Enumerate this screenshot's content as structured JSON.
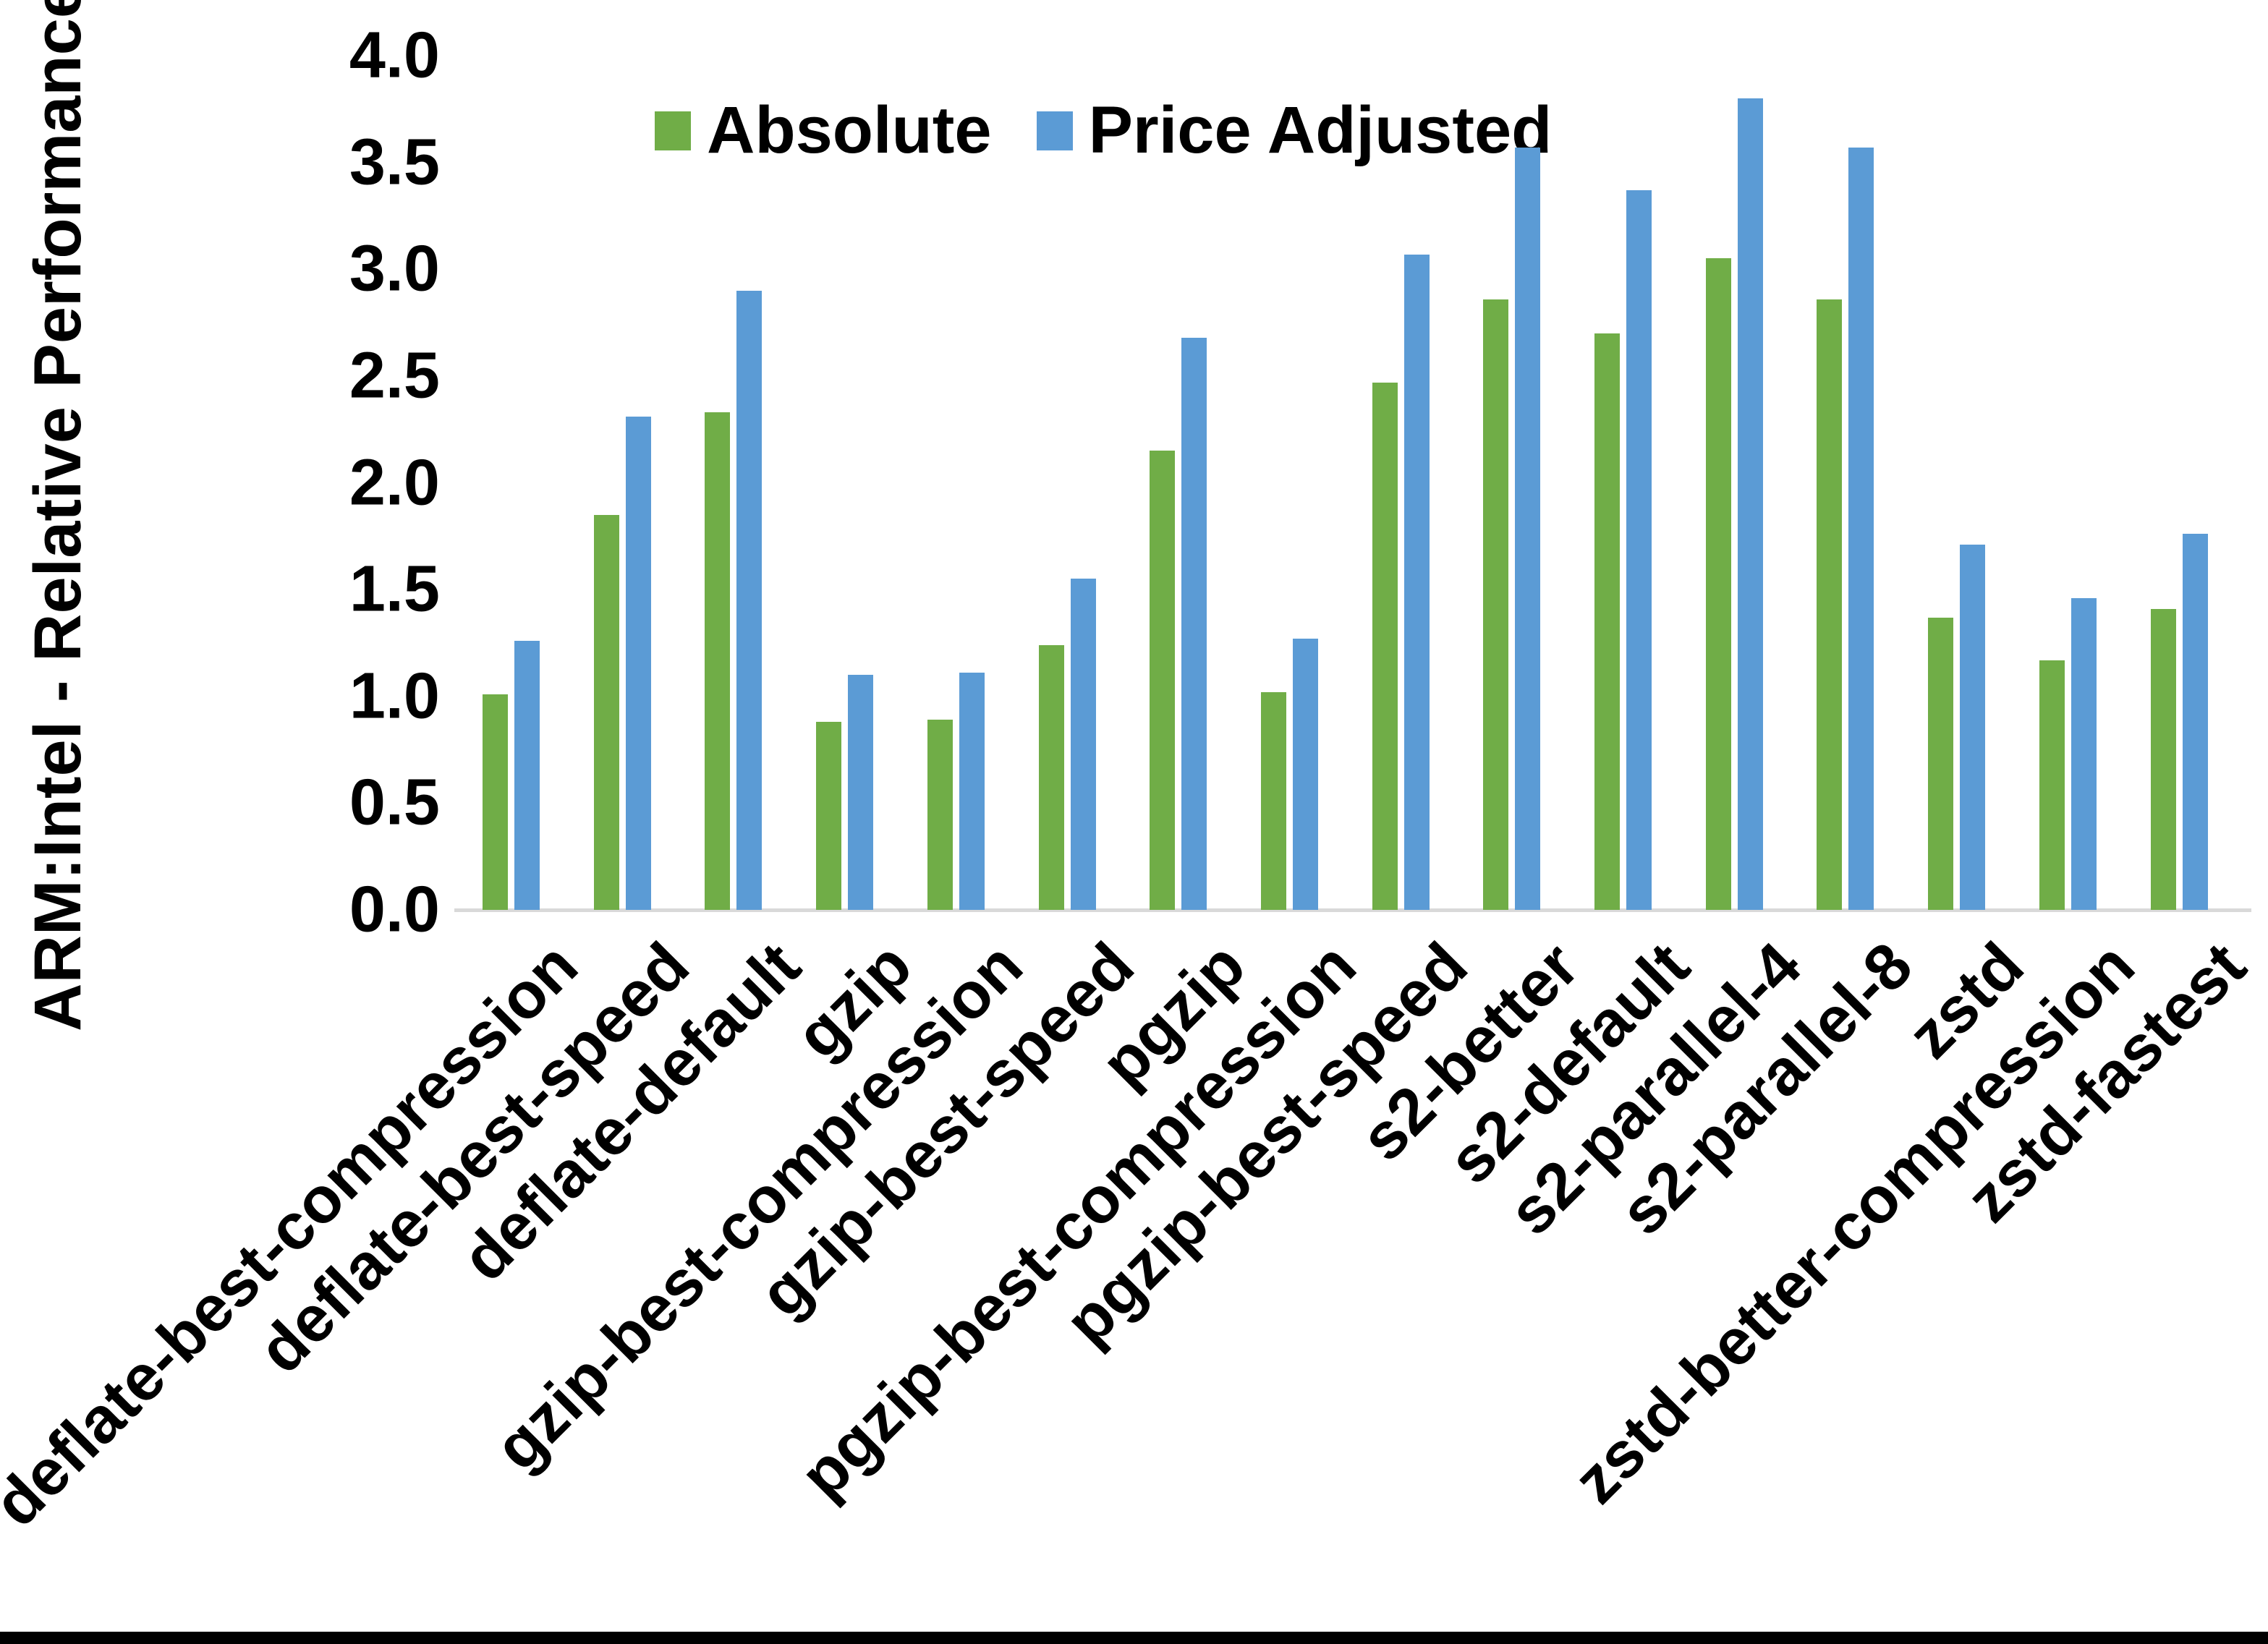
{
  "chart_data": {
    "type": "bar",
    "title": "",
    "ylabel": "ARM:Intel - Relative Performance",
    "xlabel": "",
    "ylim": [
      0.0,
      4.0
    ],
    "ytick_step": 0.5,
    "ytick_labels": [
      "0.0",
      "0.5",
      "1.0",
      "1.5",
      "2.0",
      "2.5",
      "3.0",
      "3.5",
      "4.0"
    ],
    "grid": false,
    "legend_position": "top-center",
    "categories": [
      "deflate-best-compression",
      "deflate-best-speed",
      "deflate-default",
      "gzip",
      "gzip-best-compression",
      "gzip-best-speed",
      "pgzip",
      "pgzip-best-compression",
      "pgzip-best-speed",
      "s2-better",
      "s2-default",
      "s2-parallel-4",
      "s2-parallel-8",
      "zstd",
      "zstd-better-compression",
      "zstd-fastest"
    ],
    "series": [
      {
        "name": "Absolute",
        "color": "#70AD47",
        "values": [
          1.01,
          1.85,
          2.33,
          0.88,
          0.89,
          1.24,
          2.15,
          1.02,
          2.47,
          2.86,
          2.7,
          3.05,
          2.86,
          1.37,
          1.17,
          1.41
        ]
      },
      {
        "name": "Price Adjusted",
        "color": "#5B9BD5",
        "values": [
          1.26,
          2.31,
          2.9,
          1.1,
          1.11,
          1.55,
          2.68,
          1.27,
          3.07,
          3.57,
          3.37,
          3.8,
          3.57,
          1.71,
          1.46,
          1.76
        ]
      }
    ],
    "axis_line_color": "#D9D9D9",
    "bottom_border_color": "#000000",
    "background_color": "#FFFFFF"
  }
}
